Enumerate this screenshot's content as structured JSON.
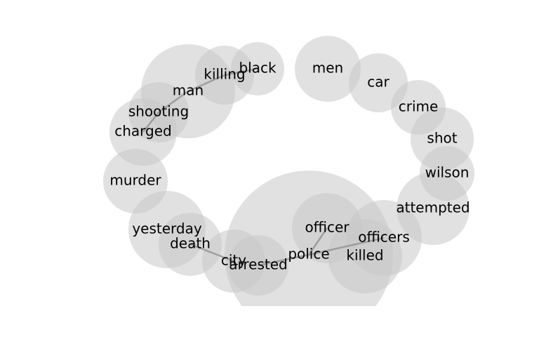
{
  "diagram": {
    "nodes": [
      {
        "id": "police",
        "label": "police"
      },
      {
        "id": "man",
        "label": "man"
      },
      {
        "id": "officer",
        "label": "officer"
      },
      {
        "id": "killed",
        "label": "killed"
      },
      {
        "id": "yesterday",
        "label": "yesterday"
      },
      {
        "id": "attempted",
        "label": "attempted"
      },
      {
        "id": "officers",
        "label": "officers"
      },
      {
        "id": "killing",
        "label": "killing"
      },
      {
        "id": "murder",
        "label": "murder"
      },
      {
        "id": "death",
        "label": "death"
      },
      {
        "id": "car",
        "label": "car"
      },
      {
        "id": "men",
        "label": "men"
      },
      {
        "id": "charged",
        "label": "charged"
      },
      {
        "id": "city",
        "label": "city"
      },
      {
        "id": "shooting",
        "label": "shooting"
      },
      {
        "id": "crime",
        "label": "crime"
      },
      {
        "id": "shot",
        "label": "shot"
      },
      {
        "id": "black",
        "label": "black"
      },
      {
        "id": "arrested",
        "label": "arrested"
      },
      {
        "id": "wilson",
        "label": "wilson"
      }
    ],
    "edges": [
      [
        "man",
        "killing"
      ],
      [
        "killing",
        "black"
      ],
      [
        "man",
        "shooting"
      ],
      [
        "shooting",
        "charged"
      ],
      [
        "police",
        "officer"
      ],
      [
        "police",
        "officers"
      ],
      [
        "police",
        "arrested"
      ],
      [
        "city",
        "death"
      ]
    ]
  }
}
